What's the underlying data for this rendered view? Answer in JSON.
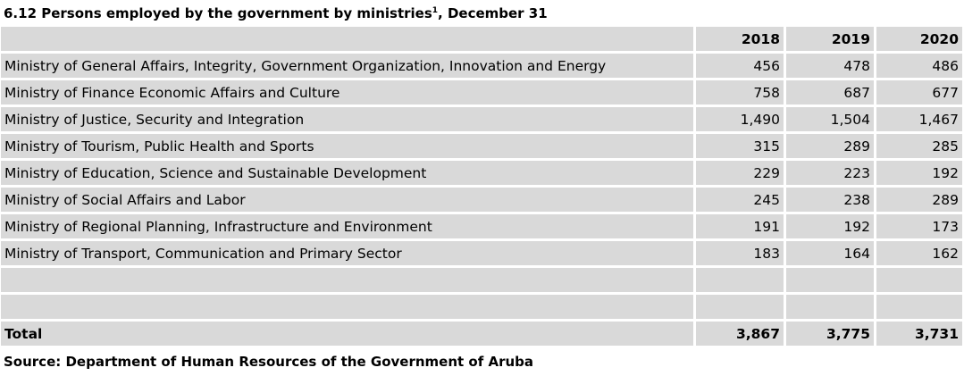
{
  "title": "6.12  Persons employed by the government by ministries",
  "title_sup": "1",
  "title_suffix": ", December 31",
  "columns": [
    "",
    "2018",
    "2019",
    "2020"
  ],
  "rows": [
    {
      "label": "Ministry of General Affairs, Integrity, Government Organization, Innovation and Energy",
      "values": [
        "456",
        "478",
        "486"
      ]
    },
    {
      "label": "Ministry of Finance Economic Affairs and Culture",
      "values": [
        "758",
        "687",
        "677"
      ]
    },
    {
      "label": "Ministry of Justice, Security and Integration",
      "values": [
        "1,490",
        "1,504",
        "1,467"
      ]
    },
    {
      "label": "Ministry of Tourism, Public Health and Sports",
      "values": [
        "315",
        "289",
        "285"
      ]
    },
    {
      "label": "Ministry of Education, Science and Sustainable Development",
      "values": [
        "229",
        "223",
        "192"
      ]
    },
    {
      "label": "Ministry of Social Affairs and Labor",
      "values": [
        "245",
        "238",
        "289"
      ]
    },
    {
      "label": "Ministry of Regional Planning, Infrastructure and Environment",
      "values": [
        "191",
        "192",
        "173"
      ]
    },
    {
      "label": "Ministry of Transport, Communication and Primary Sector",
      "values": [
        "183",
        "164",
        "162"
      ]
    }
  ],
  "total": {
    "label": "Total",
    "values": [
      "3,867",
      "3,775",
      "3,731"
    ]
  },
  "source": "Source: Department of Human Resources of the Government of Aruba",
  "colors": {
    "cell_background": "#d9d9d9",
    "grid_lines": "#ffffff"
  }
}
